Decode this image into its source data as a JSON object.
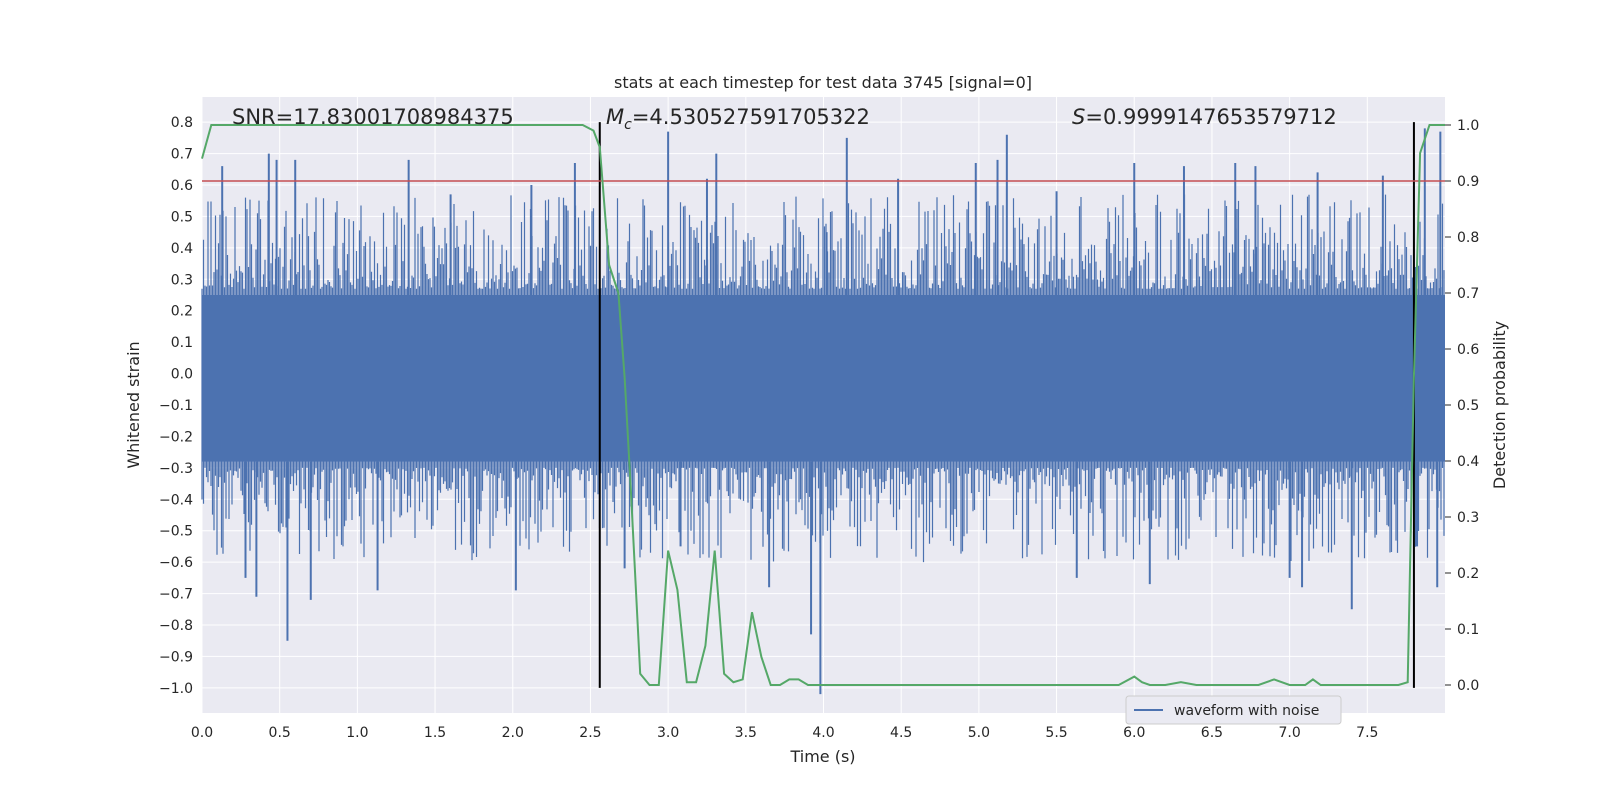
{
  "chart_data": {
    "type": "line",
    "title": "stats at each timestep for test data 3745 [signal=0]",
    "xlabel": "Time (s)",
    "ylabel": "Whitened strain",
    "y2label": "Detection probability",
    "xlim": [
      0,
      8.0
    ],
    "ylim": [
      -1.08,
      0.88
    ],
    "y2lim": [
      -0.05,
      1.05
    ],
    "xticks": [
      "0.0",
      "0.5",
      "1.0",
      "1.5",
      "2.0",
      "2.5",
      "3.0",
      "3.5",
      "4.0",
      "4.5",
      "5.0",
      "5.5",
      "6.0",
      "6.5",
      "7.0",
      "7.5"
    ],
    "xtick_values": [
      0,
      0.5,
      1,
      1.5,
      2,
      2.5,
      3,
      3.5,
      4,
      4.5,
      5,
      5.5,
      6,
      6.5,
      7,
      7.5
    ],
    "yticks": [
      "0.8",
      "0.7",
      "0.6",
      "0.5",
      "0.4",
      "0.3",
      "0.2",
      "0.1",
      "0.0",
      "−0.1",
      "−0.2",
      "−0.3",
      "−0.4",
      "−0.5",
      "−0.6",
      "−0.7",
      "−0.8",
      "−0.9",
      "−1.0"
    ],
    "ytick_values": [
      0.8,
      0.7,
      0.6,
      0.5,
      0.4,
      0.3,
      0.2,
      0.1,
      0.0,
      -0.1,
      -0.2,
      -0.3,
      -0.4,
      -0.5,
      -0.6,
      -0.7,
      -0.8,
      -0.9,
      -1.0
    ],
    "y2ticks": [
      "1.0",
      "0.9",
      "0.8",
      "0.7",
      "0.6",
      "0.5",
      "0.4",
      "0.3",
      "0.2",
      "0.1",
      "0.0"
    ],
    "y2tick_values": [
      1.0,
      0.9,
      0.8,
      0.7,
      0.6,
      0.5,
      0.4,
      0.3,
      0.2,
      0.1,
      0.0
    ],
    "annotations": {
      "snr": "SNR=17.83001708984375",
      "mc_symbol": "M",
      "mc_sub": "c",
      "mc_value": "=4.530527591705322",
      "s_symbol": "S",
      "s_value": "=0.9999147653579712"
    },
    "legend": {
      "label": "waveform with noise",
      "placement": "lower-right"
    },
    "threshold": {
      "value": 0.9,
      "axis": "y2",
      "color": "#c44e52"
    },
    "vertical_lines": [
      2.56,
      7.8
    ],
    "waveform": {
      "name": "waveform with noise",
      "color": "#4c72b0",
      "band_upper": 0.25,
      "band_lower": -0.28,
      "outliers": [
        [
          0.55,
          -0.85
        ],
        [
          0.35,
          -0.71
        ],
        [
          0.48,
          0.68
        ],
        [
          0.43,
          0.7
        ],
        [
          0.13,
          0.66
        ],
        [
          0.28,
          -0.65
        ],
        [
          0.6,
          0.68
        ],
        [
          0.7,
          -0.72
        ],
        [
          1.13,
          -0.69
        ],
        [
          1.33,
          0.68
        ],
        [
          1.6,
          0.57
        ],
        [
          2.02,
          -0.69
        ],
        [
          2.12,
          0.6
        ],
        [
          2.4,
          0.67
        ],
        [
          3.0,
          0.77
        ],
        [
          3.31,
          0.7
        ],
        [
          2.72,
          -0.62
        ],
        [
          3.08,
          -0.55
        ],
        [
          3.25,
          0.62
        ],
        [
          3.65,
          -0.68
        ],
        [
          3.92,
          -0.83
        ],
        [
          3.98,
          -1.02
        ],
        [
          4.15,
          0.75
        ],
        [
          4.02,
          0.45
        ],
        [
          4.48,
          0.62
        ],
        [
          4.98,
          0.67
        ],
        [
          5.12,
          0.68
        ],
        [
          5.18,
          0.76
        ],
        [
          5.5,
          0.58
        ],
        [
          5.63,
          -0.65
        ],
        [
          6.0,
          0.67
        ],
        [
          6.1,
          -0.67
        ],
        [
          6.32,
          0.66
        ],
        [
          6.65,
          0.67
        ],
        [
          6.78,
          0.66
        ],
        [
          7.0,
          -0.65
        ],
        [
          7.08,
          -0.68
        ],
        [
          7.18,
          0.64
        ],
        [
          7.4,
          -0.75
        ],
        [
          7.6,
          0.63
        ],
        [
          7.82,
          -0.55
        ],
        [
          7.87,
          0.78
        ],
        [
          7.95,
          -0.68
        ],
        [
          7.97,
          0.77
        ]
      ]
    },
    "series": [
      {
        "name": "detection probability",
        "axis": "y2",
        "color": "#55a868",
        "x": [
          0,
          0.06,
          0.5,
          1.0,
          1.5,
          2.0,
          2.3,
          2.45,
          2.52,
          2.56,
          2.62,
          2.68,
          2.72,
          2.76,
          2.82,
          2.88,
          2.94,
          3.0,
          3.06,
          3.12,
          3.18,
          3.24,
          3.3,
          3.36,
          3.42,
          3.48,
          3.54,
          3.6,
          3.66,
          3.72,
          3.78,
          3.84,
          3.9,
          3.96,
          4.02,
          4.2,
          4.5,
          4.8,
          5.0,
          5.5,
          5.9,
          6.0,
          6.05,
          6.1,
          6.2,
          6.3,
          6.4,
          6.6,
          6.8,
          6.9,
          7.0,
          7.1,
          7.15,
          7.2,
          7.3,
          7.5,
          7.7,
          7.76,
          7.8,
          7.84,
          7.9,
          7.95,
          8.0
        ],
        "y": [
          0.94,
          1.0,
          1.0,
          1.0,
          1.0,
          1.0,
          1.0,
          1.0,
          0.99,
          0.96,
          0.75,
          0.7,
          0.55,
          0.35,
          0.02,
          0.0,
          0.0,
          0.24,
          0.17,
          0.005,
          0.005,
          0.07,
          0.24,
          0.02,
          0.005,
          0.01,
          0.13,
          0.05,
          0.0,
          0.0,
          0.01,
          0.01,
          0.0,
          0.0,
          0.0,
          0.0,
          0.0,
          0.0,
          0.0,
          0.0,
          0.0,
          0.015,
          0.005,
          0.0,
          0.0,
          0.005,
          0.0,
          0.0,
          0.0,
          0.01,
          0.0,
          0.0,
          0.01,
          0.0,
          0.0,
          0.0,
          0.0,
          0.005,
          0.55,
          0.95,
          1.0,
          1.0,
          1.0
        ]
      }
    ]
  }
}
